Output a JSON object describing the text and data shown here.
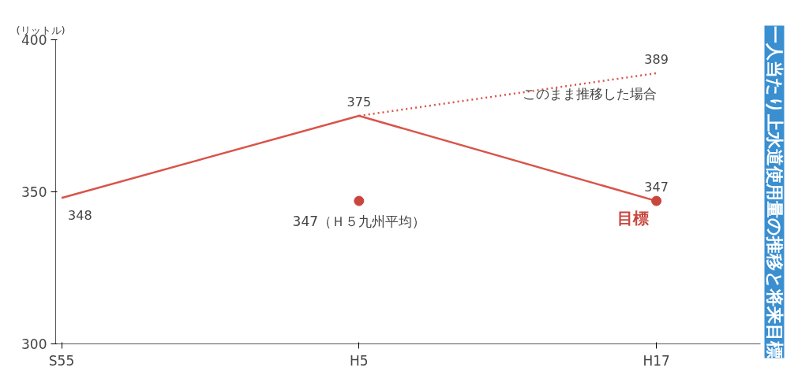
{
  "chart_data": {
    "type": "line",
    "title": "一人当たり上水道使用量の推移と将来目標",
    "ylabel": "(リットル)",
    "categories": [
      "S55",
      "H5",
      "H17"
    ],
    "series": [
      {
        "color": "#d9544a",
        "values": [
          348,
          375,
          347
        ],
        "value_labels": [
          "348",
          "375",
          "347"
        ],
        "line_style": "solid"
      },
      {
        "color": "#d9544a",
        "values": [
          null,
          375,
          389
        ],
        "value_labels": [
          null,
          null,
          "389"
        ],
        "line_style": "dotted"
      },
      {
        "type": "scatter",
        "color": "#c8463c",
        "values": [
          null,
          347,
          null
        ],
        "marker": "circle"
      },
      {
        "type": "scatter",
        "name": "目標",
        "color": "#c8463c",
        "values": [
          null,
          null,
          347
        ],
        "marker": "circle"
      }
    ],
    "annotations": [
      {
        "text": "347（Ｈ５九州平均）",
        "x": "H5",
        "y": 347
      },
      {
        "text": "このまま推移した場合",
        "x": "H17",
        "y": 389
      }
    ],
    "ylim": [
      300,
      400
    ],
    "yticks": [
      300,
      350,
      400
    ],
    "grid": false
  }
}
